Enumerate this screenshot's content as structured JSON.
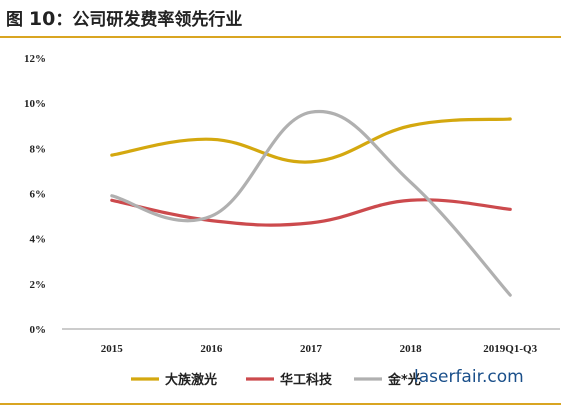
{
  "title": {
    "prefix": "图",
    "number": "10",
    "text": "：公司研发费率领先行业"
  },
  "colors": {
    "accent_rule": "#d9a521",
    "axis": "#999999"
  },
  "watermark": "laserfair.com",
  "chart_data": {
    "type": "line",
    "categories": [
      "2015",
      "2016",
      "2017",
      "2018",
      "2019Q1-Q3"
    ],
    "yticks": [
      "0%",
      "2%",
      "4%",
      "6%",
      "8%",
      "10%",
      "12%"
    ],
    "ylim": [
      0,
      12
    ],
    "grid": false,
    "legend_position": "bottom",
    "series": [
      {
        "name": "大族激光",
        "color": "#d4a80f",
        "values": [
          7.7,
          8.4,
          7.4,
          9.0,
          9.3
        ]
      },
      {
        "name": "华工科技",
        "color": "#cc4a4d",
        "values": [
          5.7,
          4.8,
          4.7,
          5.7,
          5.3
        ]
      },
      {
        "name": "金*光",
        "color": "#b0b0b0",
        "values": [
          5.9,
          5.0,
          9.6,
          6.5,
          1.5
        ]
      }
    ]
  }
}
